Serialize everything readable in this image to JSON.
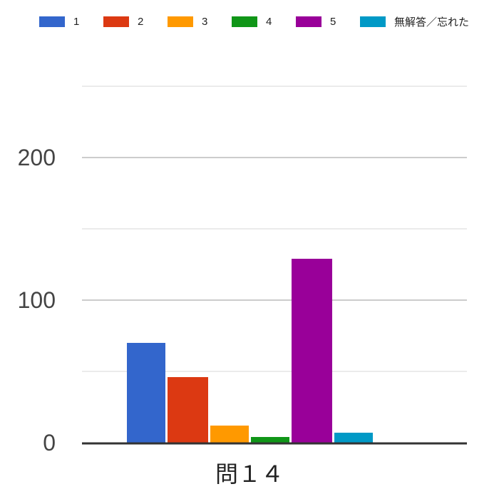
{
  "chart_data": {
    "type": "bar",
    "categories": [
      "問１４"
    ],
    "series": [
      {
        "name": "1",
        "values": [
          70
        ],
        "color": "#3366cc"
      },
      {
        "name": "2",
        "values": [
          46
        ],
        "color": "#dc3912"
      },
      {
        "name": "3",
        "values": [
          12
        ],
        "color": "#ff9900"
      },
      {
        "name": "4",
        "values": [
          4
        ],
        "color": "#109618"
      },
      {
        "name": "5",
        "values": [
          129
        ],
        "color": "#990099"
      },
      {
        "name": "無解答／忘れた",
        "values": [
          7
        ],
        "color": "#0099c6"
      }
    ],
    "yticks": [
      "0",
      "100",
      "200"
    ],
    "ylim": [
      0,
      250
    ],
    "grid": true,
    "legend": "top",
    "title": "",
    "xlabel": "",
    "ylabel": ""
  }
}
